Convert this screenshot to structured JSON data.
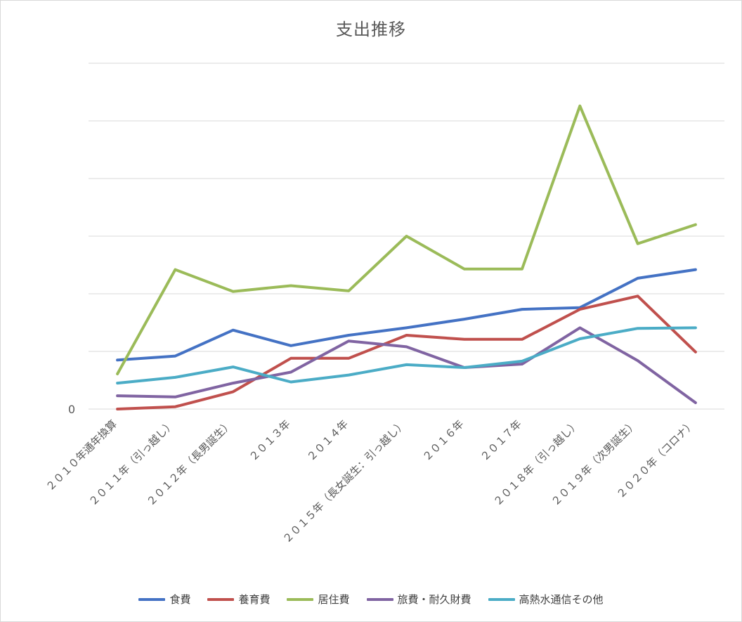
{
  "chart_data": {
    "type": "line",
    "title": "支出推移",
    "xlabel": "",
    "ylabel": "",
    "y_tick_labels": [
      "0"
    ],
    "ylim": [
      0,
      6
    ],
    "grid": true,
    "legend_position": "bottom",
    "categories": [
      "２０１０年通年換算",
      "２０１１年（引っ越し）",
      "２０１２年（長男誕生）",
      "２０１３年",
      "２０１４年",
      "２０１５年（長女誕生：引っ越し）",
      "２０１６年",
      "２０１７年",
      "２０１８年（引っ越し）",
      "２０１９年（次男誕生）",
      "２０２０年（コロナ）"
    ],
    "series": [
      {
        "name": "食費",
        "color": "#4472C4",
        "values": [
          0.85,
          0.92,
          1.37,
          1.1,
          1.28,
          1.41,
          1.56,
          1.73,
          1.76,
          2.27,
          2.42
        ]
      },
      {
        "name": "養育費",
        "color": "#C0504D",
        "values": [
          0.0,
          0.04,
          0.3,
          0.88,
          0.88,
          1.28,
          1.21,
          1.21,
          1.73,
          1.96,
          0.99
        ]
      },
      {
        "name": "居住費",
        "color": "#9BBB59",
        "values": [
          0.61,
          2.42,
          2.04,
          2.14,
          2.05,
          3.0,
          2.43,
          2.43,
          5.26,
          2.87,
          3.2
        ]
      },
      {
        "name": "旅費・耐久財費",
        "color": "#8064A2",
        "values": [
          0.23,
          0.21,
          0.45,
          0.64,
          1.18,
          1.08,
          0.72,
          0.78,
          1.41,
          0.84,
          0.11
        ]
      },
      {
        "name": "高熱水通信その他",
        "color": "#4BACC6",
        "values": [
          0.45,
          0.55,
          0.73,
          0.47,
          0.59,
          0.77,
          0.72,
          0.83,
          1.22,
          1.4,
          1.41
        ]
      }
    ]
  }
}
